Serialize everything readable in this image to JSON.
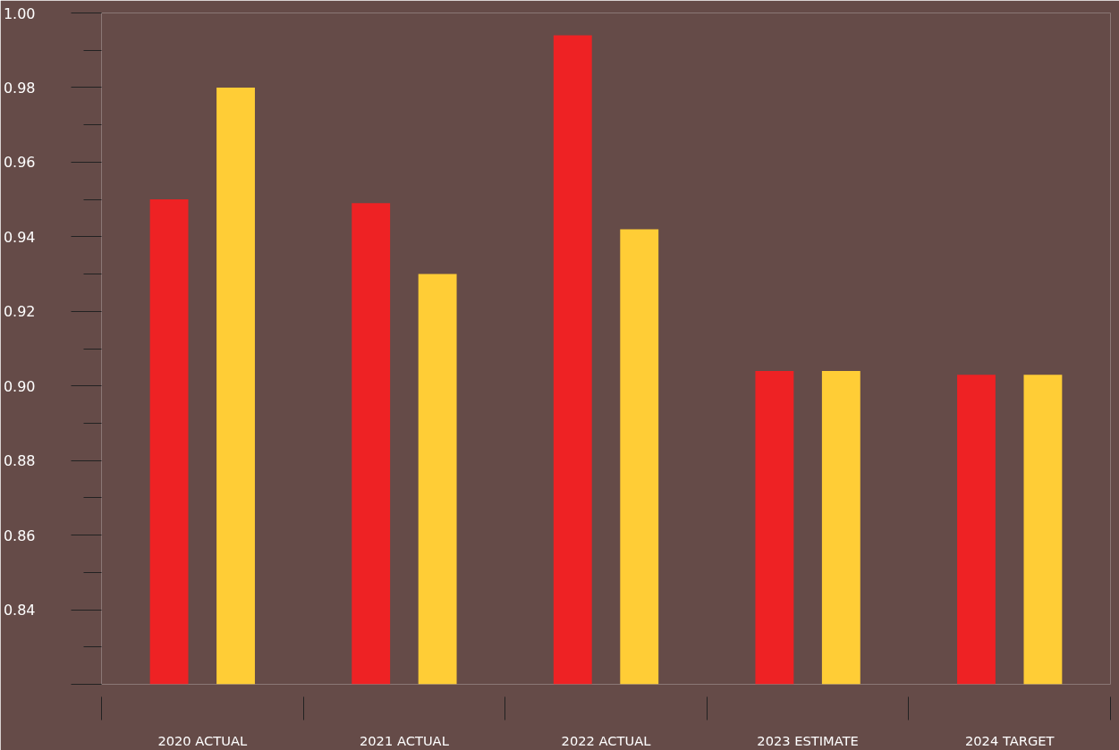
{
  "chart_data": {
    "type": "bar",
    "categories": [
      "2020 ACTUAL",
      "2021 ACTUAL",
      "2022 ACTUAL",
      "2023 ESTIMATE",
      "2024 TARGET"
    ],
    "series": [
      {
        "color": "#ee2224",
        "values": [
          0.95,
          0.949,
          0.994,
          0.904,
          0.903
        ]
      },
      {
        "color": "#ffcd36",
        "values": [
          0.98,
          0.93,
          0.942,
          0.904,
          0.903
        ]
      }
    ],
    "ylim": [
      0.82,
      1.0
    ],
    "yticks": [
      {
        "value": 0.82,
        "label": null
      },
      {
        "value": 0.84,
        "label": "0.84"
      },
      {
        "value": 0.86,
        "label": "0.86"
      },
      {
        "value": 0.88,
        "label": "0.88"
      },
      {
        "value": 0.9,
        "label": "0.90"
      },
      {
        "value": 0.92,
        "label": "0.92"
      },
      {
        "value": 0.94,
        "label": "0.94"
      },
      {
        "value": 0.96,
        "label": "0.96"
      },
      {
        "value": 0.98,
        "label": "0.98"
      },
      {
        "value": 1.0,
        "label": "1.00"
      }
    ],
    "grid": false
  }
}
